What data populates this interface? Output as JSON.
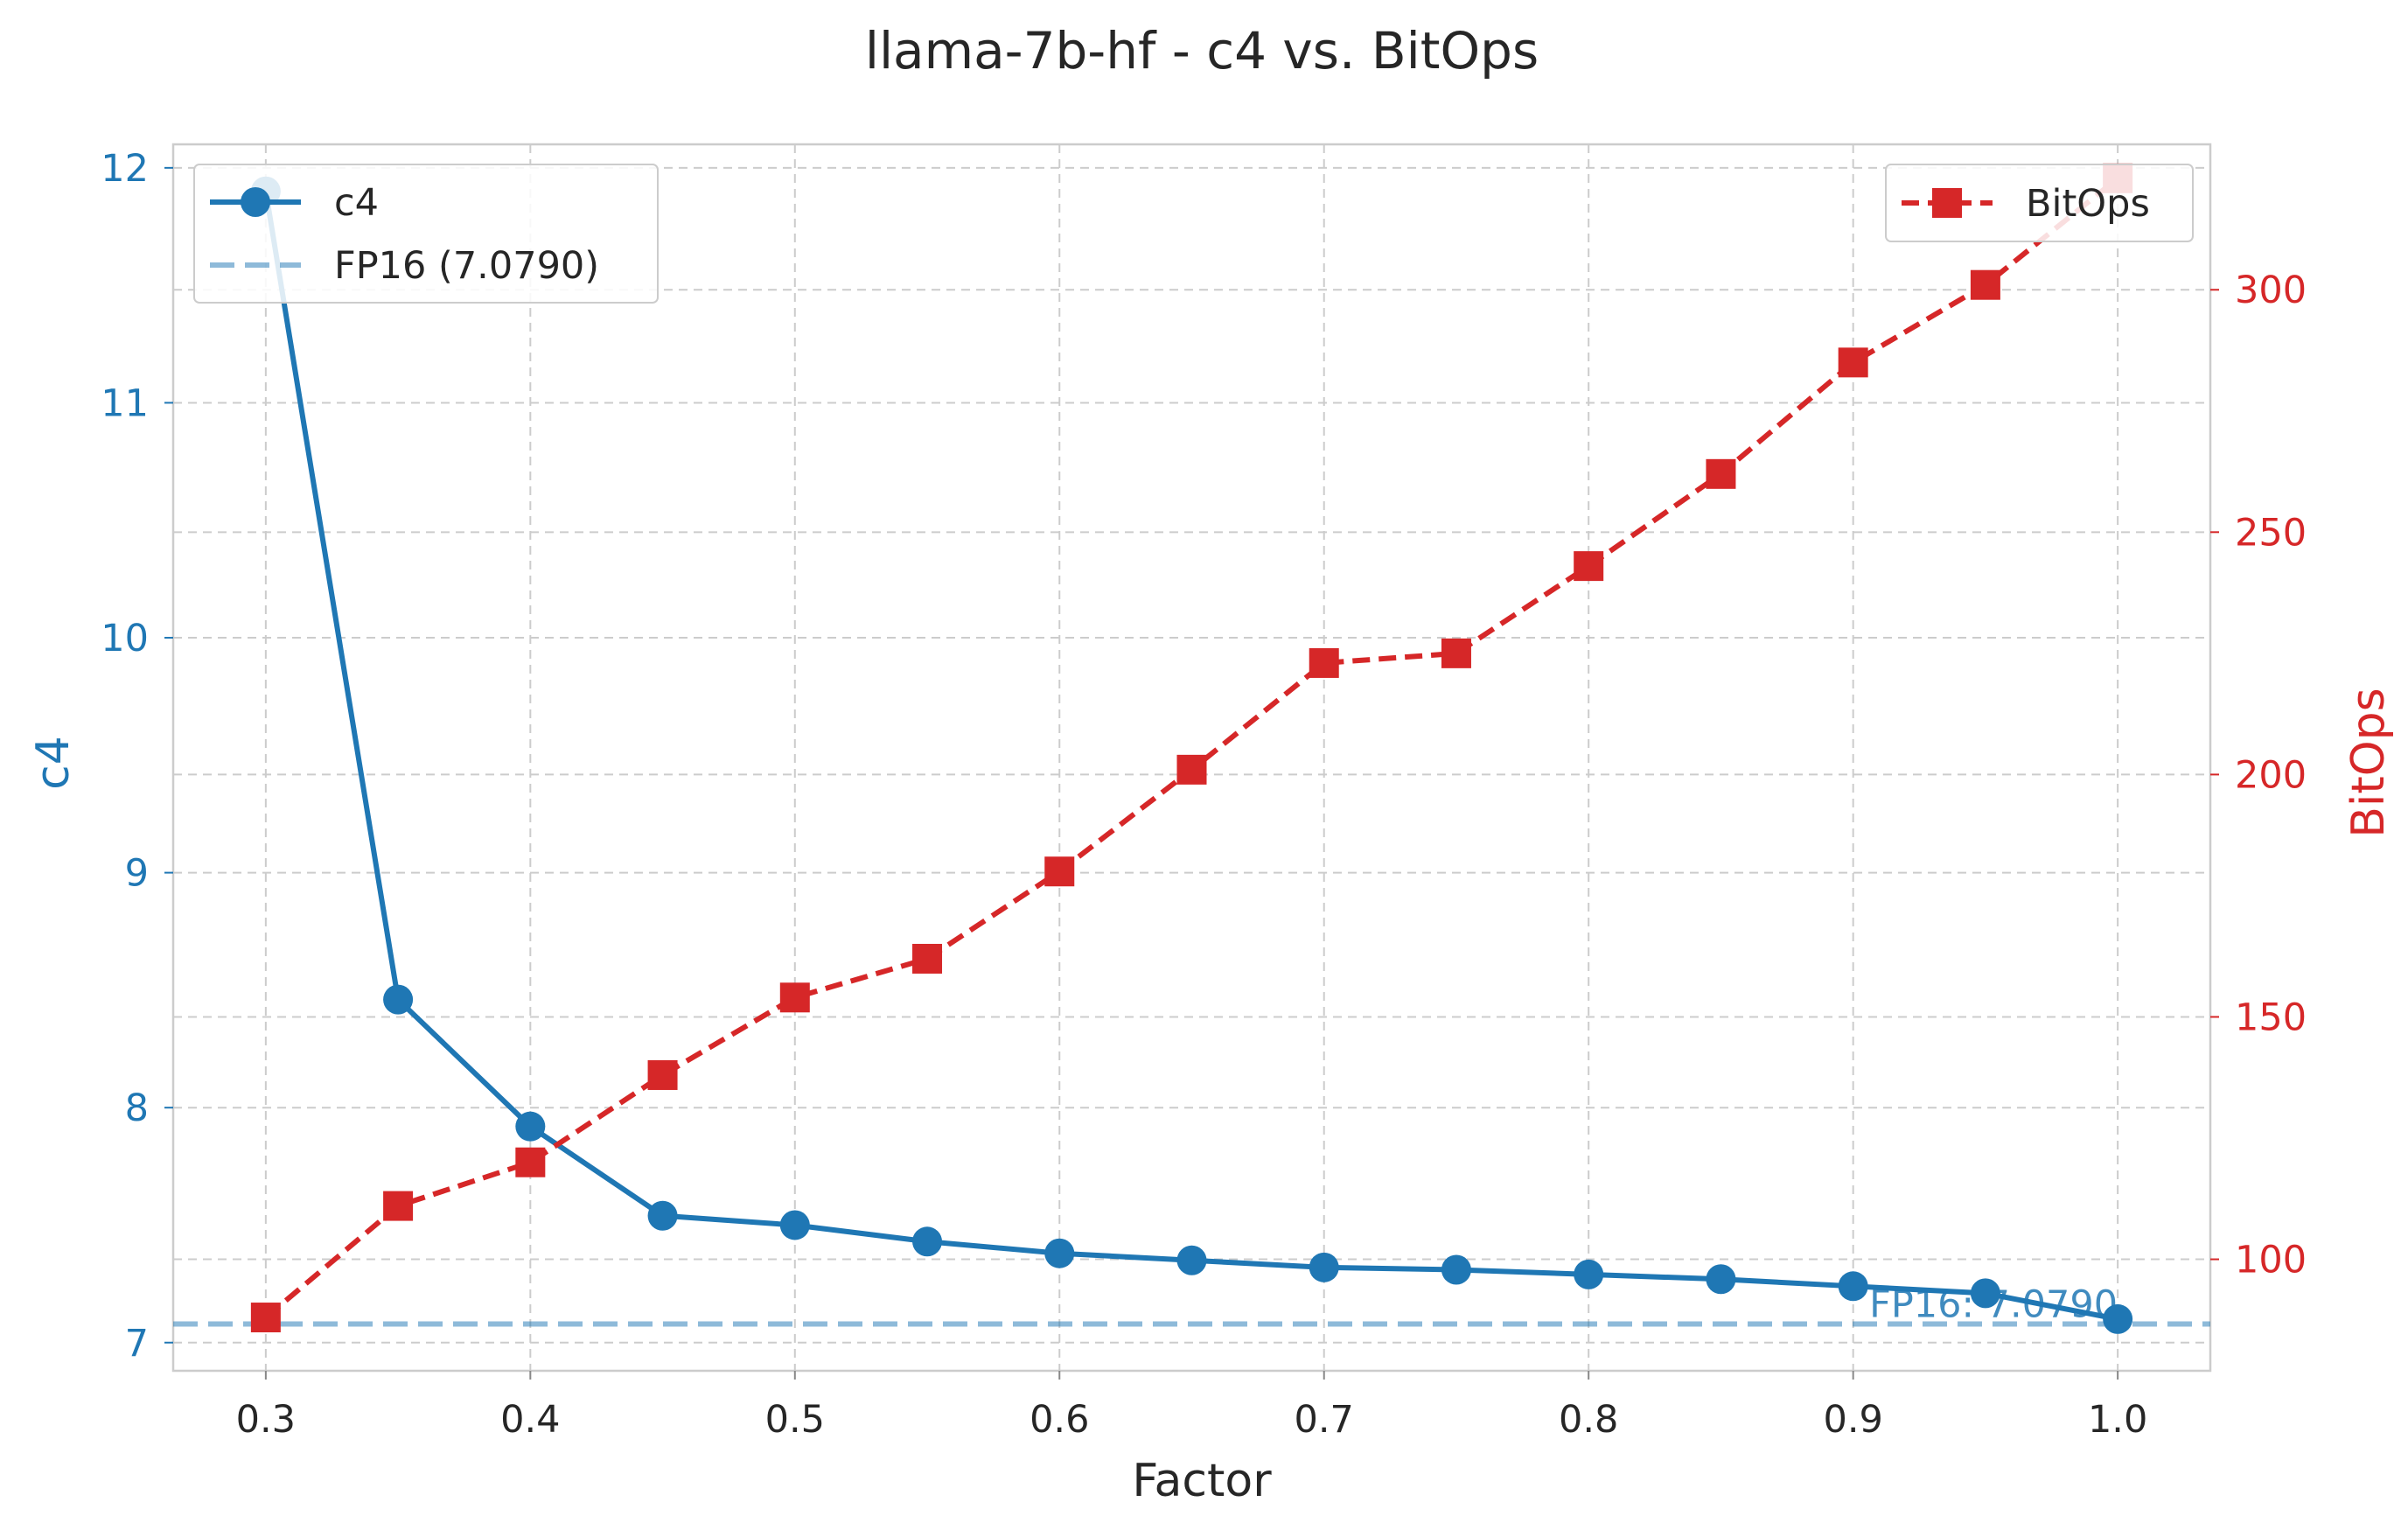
{
  "chart_data": {
    "type": "line",
    "title": "llama-7b-hf - c4 vs. BitOps",
    "xlabel": "Factor",
    "ylabel_left": "c4",
    "ylabel_right": "BitOps",
    "x_ticks": [
      "0.3",
      "0.4",
      "0.5",
      "0.6",
      "0.7",
      "0.8",
      "0.9",
      "1.0"
    ],
    "y_left_ticks": [
      "7",
      "8",
      "9",
      "10",
      "11",
      "12"
    ],
    "y_right_ticks": [
      "100",
      "150",
      "200",
      "250",
      "300"
    ],
    "xlim": [
      0.265,
      1.035
    ],
    "ylim_left": [
      6.88,
      12.1
    ],
    "ylim_right": [
      77,
      330
    ],
    "grid": true,
    "x": [
      0.3,
      0.35,
      0.4,
      0.45,
      0.5,
      0.55,
      0.6,
      0.65,
      0.7,
      0.75,
      0.8,
      0.85,
      0.9,
      0.95,
      1.0
    ],
    "series": [
      {
        "name": "c4",
        "axis": "left",
        "color": "#1f77b4",
        "marker": "circle",
        "linestyle": "solid",
        "values": [
          11.9,
          8.46,
          7.92,
          7.54,
          7.5,
          7.43,
          7.38,
          7.35,
          7.32,
          7.31,
          7.29,
          7.27,
          7.24,
          7.21,
          7.1
        ]
      },
      {
        "name": "BitOps",
        "axis": "right",
        "color": "#d62728",
        "marker": "square",
        "linestyle": "dashed",
        "values": [
          88,
          111,
          120,
          138,
          154,
          162,
          180,
          201,
          223,
          225,
          243,
          262,
          285,
          301,
          323
        ]
      }
    ],
    "reference_line": {
      "name": "FP16 (7.0790)",
      "value": 7.079,
      "axis": "left",
      "color": "#1f77b4",
      "annotation": "FP16: 7.0790"
    },
    "legends": [
      {
        "placement": "upper-left",
        "entries": [
          "c4",
          "FP16 (7.0790)"
        ]
      },
      {
        "placement": "upper-right",
        "entries": [
          "BitOps"
        ]
      }
    ]
  }
}
